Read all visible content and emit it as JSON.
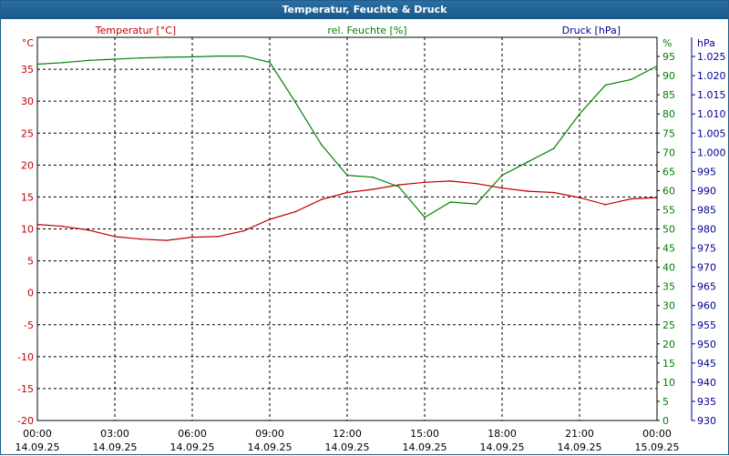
{
  "window": {
    "title": "Temperatur, Feuchte & Druck"
  },
  "chart_data": {
    "type": "line",
    "title": "Temperatur, Feuchte & Druck",
    "grid": true,
    "x": [
      "00:00",
      "01:00",
      "02:00",
      "03:00",
      "04:00",
      "05:00",
      "06:00",
      "07:00",
      "08:00",
      "09:00",
      "10:00",
      "11:00",
      "12:00",
      "13:00",
      "14:00",
      "15:00",
      "16:00",
      "17:00",
      "18:00",
      "19:00",
      "20:00",
      "21:00",
      "22:00",
      "23:00",
      "00:00"
    ],
    "x_ticks": [
      {
        "time": "00:00",
        "date": "14.09.25"
      },
      {
        "time": "03:00",
        "date": "14.09.25"
      },
      {
        "time": "06:00",
        "date": "14.09.25"
      },
      {
        "time": "09:00",
        "date": "14.09.25"
      },
      {
        "time": "12:00",
        "date": "14.09.25"
      },
      {
        "time": "15:00",
        "date": "14.09.25"
      },
      {
        "time": "18:00",
        "date": "14.09.25"
      },
      {
        "time": "21:00",
        "date": "14.09.25"
      },
      {
        "time": "00:00",
        "date": "15.09.25"
      }
    ],
    "axes": {
      "temperature": {
        "label": "Temperatur [°C]",
        "unit": "°C",
        "min": -20,
        "max": 40,
        "color": "#c00000",
        "ticks": [
          35,
          30,
          25,
          20,
          15,
          10,
          5,
          0,
          -5,
          -10,
          -15,
          -20
        ]
      },
      "humidity": {
        "label": "rel. Feuchte [%]",
        "unit": "%",
        "min": 0,
        "max": 100,
        "color": "#008000",
        "ticks": [
          95,
          90,
          85,
          80,
          75,
          70,
          65,
          60,
          55,
          50,
          45,
          40,
          35,
          30,
          25,
          20,
          15,
          10,
          5,
          0
        ]
      },
      "pressure": {
        "label": "Druck [hPa]",
        "unit": "hPa",
        "min": 930,
        "max": 1030,
        "color": "#000090",
        "ticks": [
          "1.025",
          "1.020",
          "1.015",
          "1.010",
          "1.005",
          "1.000",
          "995",
          "990",
          "985",
          "980",
          "975",
          "970",
          "965",
          "960",
          "955",
          "950",
          "945",
          "940",
          "935",
          "930"
        ]
      }
    },
    "series": [
      {
        "name": "Temperatur [°C]",
        "axis": "temperature",
        "color": "#c00000",
        "values": [
          10.7,
          10.4,
          9.8,
          8.8,
          8.4,
          8.2,
          8.7,
          8.8,
          9.7,
          11.5,
          12.7,
          14.6,
          15.7,
          16.2,
          16.9,
          17.3,
          17.5,
          17.1,
          16.4,
          15.9,
          15.7,
          14.9,
          13.8,
          14.7,
          14.9
        ]
      },
      {
        "name": "rel. Feuchte [%]",
        "axis": "humidity",
        "color": "#008000",
        "values": [
          93.0,
          93.4,
          94.0,
          94.3,
          94.6,
          94.8,
          94.9,
          95.1,
          95.1,
          93.5,
          83.0,
          72.0,
          64.0,
          63.5,
          61.0,
          53.0,
          57.0,
          56.5,
          64.0,
          67.5,
          71.0,
          80.0,
          87.5,
          89.0,
          92.5
        ]
      }
    ]
  }
}
